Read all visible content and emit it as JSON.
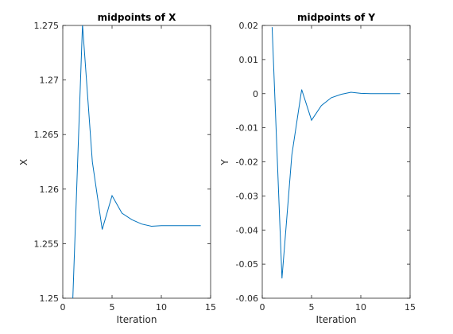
{
  "chart_data": [
    {
      "type": "line",
      "title": "midpoints of X",
      "xlabel": "Iteration",
      "ylabel": "X",
      "xlim": [
        0,
        15
      ],
      "ylim": [
        1.25,
        1.275
      ],
      "xticks": [
        "0",
        "5",
        "10",
        "15"
      ],
      "yticks": [
        "1.25",
        "1.255",
        "1.26",
        "1.265",
        "1.27",
        "1.275"
      ],
      "line_color": "#0072BD",
      "grid": false,
      "series": [
        {
          "x": [
            1,
            2,
            3,
            4,
            5,
            6,
            7,
            8,
            9,
            10,
            11,
            12,
            13,
            14
          ],
          "values": [
            1.2495,
            1.2751,
            1.2625,
            1.2563,
            1.2594,
            1.2578,
            1.2572,
            1.2568,
            1.2566,
            1.25665,
            1.25665,
            1.25665,
            1.25665,
            1.25665
          ]
        }
      ]
    },
    {
      "type": "line",
      "title": "midpoints of Y",
      "xlabel": "Iteration",
      "ylabel": "Y",
      "xlim": [
        0,
        15
      ],
      "ylim": [
        -0.06,
        0.02
      ],
      "xticks": [
        "0",
        "5",
        "10",
        "15"
      ],
      "yticks": [
        "-0.06",
        "-0.05",
        "-0.04",
        "-0.03",
        "-0.02",
        "-0.01",
        "0",
        "0.01",
        "0.02"
      ],
      "line_color": "#0072BD",
      "grid": false,
      "series": [
        {
          "x": [
            1,
            2,
            3,
            4,
            5,
            6,
            7,
            8,
            9,
            10,
            11,
            12,
            13,
            14
          ],
          "values": [
            0.0195,
            -0.0542,
            -0.018,
            0.0012,
            -0.0078,
            -0.0035,
            -0.0012,
            -0.0002,
            0.0004,
            0.0001,
            0.0,
            0.0,
            0.0,
            0.0
          ]
        }
      ]
    }
  ]
}
